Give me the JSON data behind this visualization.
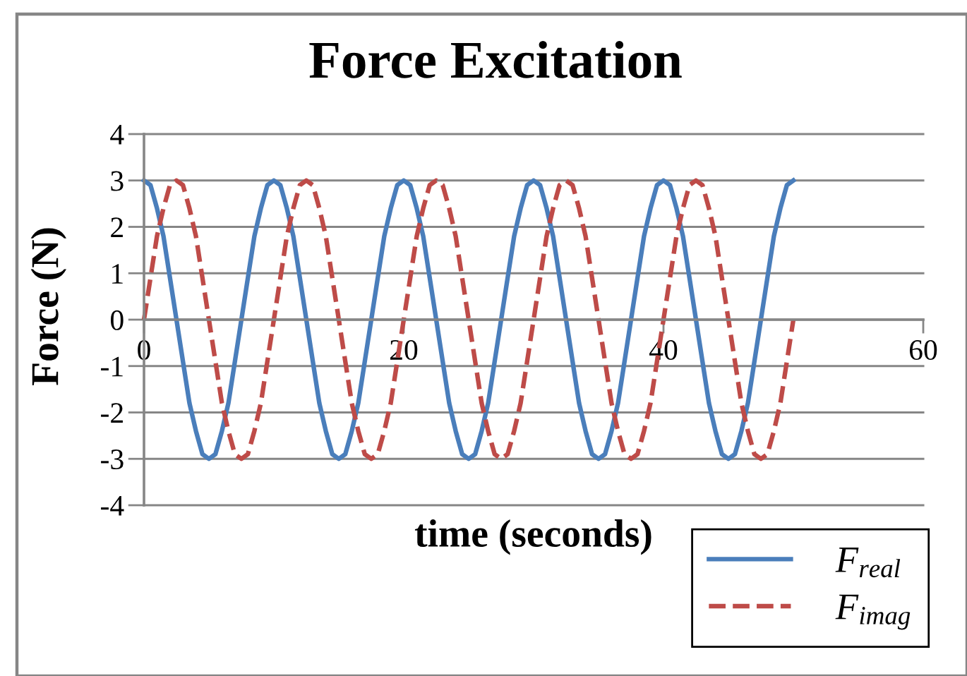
{
  "chart_data": {
    "type": "line",
    "title": "Force Excitation",
    "xlabel": "time (seconds)",
    "ylabel": "Force (N)",
    "x": [
      0,
      0.5,
      1,
      1.5,
      2,
      2.5,
      3,
      3.5,
      4,
      4.5,
      5,
      5.5,
      6,
      6.5,
      7,
      7.5,
      8,
      8.5,
      9,
      9.5,
      10,
      10.5,
      11,
      11.5,
      12,
      12.5,
      13,
      13.5,
      14,
      14.5,
      15,
      15.5,
      16,
      16.5,
      17,
      17.5,
      18,
      18.5,
      19,
      19.5,
      20,
      20.5,
      21,
      21.5,
      22,
      22.5,
      23,
      23.5,
      24,
      24.5,
      25,
      25.5,
      26,
      26.5,
      27,
      27.5,
      28,
      28.5,
      29,
      29.5,
      30,
      30.5,
      31,
      31.5,
      32,
      32.5,
      33,
      33.5,
      34,
      34.5,
      35,
      35.5,
      36,
      36.5,
      37,
      37.5,
      38,
      38.5,
      39,
      39.5,
      40,
      40.5,
      41,
      41.5,
      42,
      42.5,
      43,
      43.5,
      44,
      44.5,
      45,
      45.5,
      46,
      46.5,
      47,
      47.5,
      48,
      48.5,
      49,
      49.5,
      50
    ],
    "series": [
      {
        "name": "F$_{real}$",
        "color": "#4a7ebb",
        "line_style": "solid",
        "values": [
          3,
          2.9,
          2.4,
          1.8,
          0.9,
          0,
          -0.9,
          -1.8,
          -2.4,
          -2.9,
          -3,
          -2.9,
          -2.4,
          -1.8,
          -0.9,
          0,
          0.9,
          1.8,
          2.4,
          2.9,
          3,
          2.9,
          2.4,
          1.8,
          0.9,
          0,
          -0.9,
          -1.8,
          -2.4,
          -2.9,
          -3,
          -2.9,
          -2.4,
          -1.8,
          -0.9,
          0,
          0.9,
          1.8,
          2.4,
          2.9,
          3,
          2.9,
          2.4,
          1.8,
          0.9,
          0,
          -0.9,
          -1.8,
          -2.4,
          -2.9,
          -3,
          -2.9,
          -2.4,
          -1.8,
          -0.9,
          0,
          0.9,
          1.8,
          2.4,
          2.9,
          3,
          2.9,
          2.4,
          1.8,
          0.9,
          0,
          -0.9,
          -1.8,
          -2.4,
          -2.9,
          -3,
          -2.9,
          -2.4,
          -1.8,
          -0.9,
          0,
          0.9,
          1.8,
          2.4,
          2.9,
          3,
          2.9,
          2.4,
          1.8,
          0.9,
          0,
          -0.9,
          -1.8,
          -2.4,
          -2.9,
          -3,
          -2.9,
          -2.4,
          -1.8,
          -0.9,
          0,
          0.9,
          1.8,
          2.4,
          2.9,
          3
        ]
      },
      {
        "name": "F$_{imag}$",
        "color": "#be4b48",
        "line_style": "dashed",
        "values": [
          0,
          0.9,
          1.8,
          2.4,
          2.9,
          3,
          2.9,
          2.4,
          1.8,
          0.9,
          0,
          -0.9,
          -1.8,
          -2.4,
          -2.9,
          -3,
          -2.9,
          -2.4,
          -1.8,
          -0.9,
          0,
          0.9,
          1.8,
          2.4,
          2.9,
          3,
          2.9,
          2.4,
          1.8,
          0.9,
          0,
          -0.9,
          -1.8,
          -2.4,
          -2.9,
          -3,
          -2.9,
          -2.4,
          -1.8,
          -0.9,
          0,
          0.9,
          1.8,
          2.4,
          2.9,
          3,
          2.9,
          2.4,
          1.8,
          0.9,
          0,
          -0.9,
          -1.8,
          -2.4,
          -2.9,
          -3,
          -2.9,
          -2.4,
          -1.8,
          -0.9,
          0,
          0.9,
          1.8,
          2.4,
          2.9,
          3,
          2.9,
          2.4,
          1.8,
          0.9,
          0,
          -0.9,
          -1.8,
          -2.4,
          -2.9,
          -3,
          -2.9,
          -2.4,
          -1.8,
          -0.9,
          0,
          0.9,
          1.8,
          2.4,
          2.9,
          3,
          2.9,
          2.4,
          1.8,
          0.9,
          0,
          -0.9,
          -1.8,
          -2.4,
          -2.9,
          -3,
          -2.9,
          -2.4,
          -1.8,
          -0.9,
          0
        ]
      }
    ],
    "xlim": [
      0,
      60
    ],
    "ylim": [
      -4,
      4
    ],
    "xticks": [
      0,
      20,
      40,
      60
    ],
    "yticks": [
      -4,
      -3,
      -2,
      -1,
      0,
      1,
      2,
      3,
      4
    ],
    "grid": "y",
    "legend": "bottom right"
  }
}
